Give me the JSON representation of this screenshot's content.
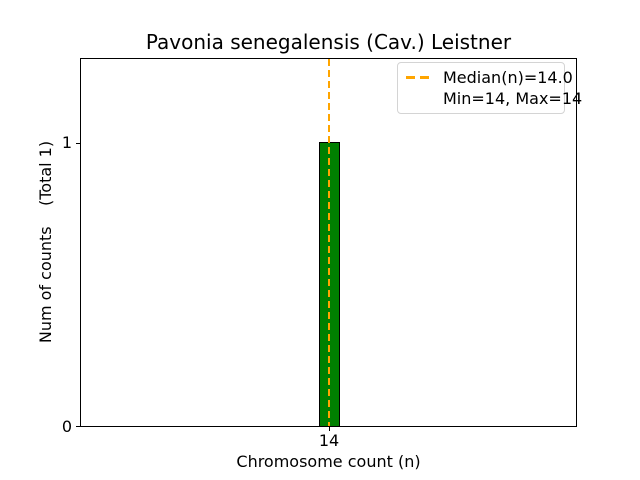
{
  "figure": {
    "title": "Pavonia senegalensis (Cav.) Leistner",
    "xlabel": "Chromosome count (n)",
    "ylabel": "Num of counts    (Total 1)",
    "x_tick": "14",
    "y_ticks": [
      "0",
      "1"
    ],
    "legend": {
      "median_label": "Median(n)=14.0",
      "minmax_label": "Min=14, Max=14"
    },
    "colors": {
      "bar_fill": "#008000",
      "bar_edge": "#000000",
      "median_line": "#FFA500",
      "legend_border": "#d4d4d4",
      "background": "#ffffff",
      "text": "#000000"
    }
  },
  "chart_data": {
    "type": "bar",
    "title": "Pavonia senegalensis (Cav.) Leistner",
    "xlabel": "Chromosome count (n)",
    "ylabel": "Num of counts    (Total 1)",
    "categories": [
      14
    ],
    "values": [
      1
    ],
    "x_tick_labels": [
      "14"
    ],
    "y_tick_labels": [
      "0",
      "1"
    ],
    "ylim": [
      0,
      1.3
    ],
    "median_n": 14.0,
    "min_n": 14,
    "max_n": 14,
    "total_counts": 1,
    "legend_entries": [
      "Median(n)=14.0",
      "Min=14, Max=14"
    ],
    "legend_position": "upper right",
    "grid": false,
    "bar_color": "#008000",
    "median_line_color": "#FFA500",
    "median_line_style": "dashed"
  }
}
